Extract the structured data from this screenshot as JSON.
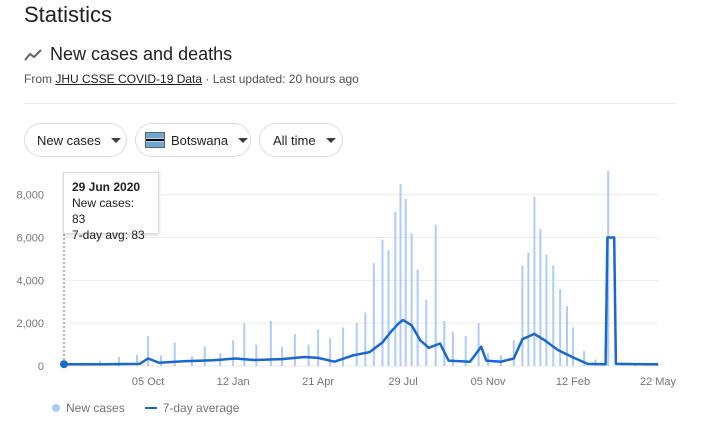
{
  "page_title": "Statistics",
  "section": {
    "title": "New cases and deaths",
    "icon": "trending-line-icon"
  },
  "source": {
    "prefix": "From",
    "link_label": "JHU CSSE COVID-19 Data",
    "updated": "· Last updated: 20 hours ago"
  },
  "filters": {
    "metric": "New cases",
    "country": "Botswana",
    "country_flag": "botswana-flag-icon",
    "range": "All time"
  },
  "tooltip": {
    "date": "29 Jun 2020",
    "new_cases": "New cases: 83",
    "avg": "7-day avg: 83"
  },
  "legend": {
    "bars": "New cases",
    "line": "7-day average"
  },
  "colors": {
    "bars": "#aecbfa",
    "line": "#1967d2",
    "grid": "#ebebeb",
    "text": "#70757a"
  },
  "chart_data": {
    "type": "bar",
    "ylim": [
      0,
      8500
    ],
    "y_ticks": [
      "0",
      "2,000",
      "4,000",
      "6,000",
      "8,000"
    ],
    "y_tick_values": [
      0,
      2000,
      4000,
      6000,
      8000
    ],
    "x_ticks": [
      "05 Oct",
      "12 Jan",
      "21 Apr",
      "29 Jul",
      "05 Nov",
      "12 Feb",
      "22 May"
    ],
    "x_tick_dates": [
      "2020-10-05",
      "2021-01-12",
      "2021-04-21",
      "2021-07-29",
      "2021-11-05",
      "2022-02-12",
      "2022-05-22"
    ],
    "x_range": [
      "2020-06-29",
      "2022-05-22"
    ],
    "grid": true,
    "legend_position": "bottom-left",
    "series": [
      {
        "name": "New cases",
        "type": "bar",
        "points": [
          [
            "2020-06-29",
            83
          ],
          [
            "2020-07-20",
            120
          ],
          [
            "2020-08-10",
            250
          ],
          [
            "2020-09-01",
            420
          ],
          [
            "2020-09-22",
            520
          ],
          [
            "2020-10-05",
            1400
          ],
          [
            "2020-10-20",
            500
          ],
          [
            "2020-11-05",
            1100
          ],
          [
            "2020-11-25",
            450
          ],
          [
            "2020-12-10",
            900
          ],
          [
            "2020-12-28",
            600
          ],
          [
            "2021-01-12",
            1200
          ],
          [
            "2021-01-25",
            2000
          ],
          [
            "2021-02-08",
            1000
          ],
          [
            "2021-02-25",
            2100
          ],
          [
            "2021-03-10",
            900
          ],
          [
            "2021-03-25",
            1500
          ],
          [
            "2021-04-10",
            1000
          ],
          [
            "2021-04-21",
            1700
          ],
          [
            "2021-05-05",
            1300
          ],
          [
            "2021-05-20",
            1800
          ],
          [
            "2021-06-05",
            2000
          ],
          [
            "2021-06-15",
            2500
          ],
          [
            "2021-06-25",
            4800
          ],
          [
            "2021-07-05",
            5900
          ],
          [
            "2021-07-12",
            5400
          ],
          [
            "2021-07-20",
            7200
          ],
          [
            "2021-07-26",
            8500
          ],
          [
            "2021-08-01",
            7800
          ],
          [
            "2021-08-08",
            6200
          ],
          [
            "2021-08-15",
            4500
          ],
          [
            "2021-08-25",
            3100
          ],
          [
            "2021-09-05",
            6600
          ],
          [
            "2021-09-15",
            2100
          ],
          [
            "2021-09-25",
            1600
          ],
          [
            "2021-10-10",
            1400
          ],
          [
            "2021-10-25",
            2000
          ],
          [
            "2021-11-05",
            600
          ],
          [
            "2021-11-20",
            500
          ],
          [
            "2021-12-05",
            1200
          ],
          [
            "2021-12-15",
            4700
          ],
          [
            "2021-12-22",
            5300
          ],
          [
            "2021-12-29",
            7900
          ],
          [
            "2022-01-05",
            6400
          ],
          [
            "2022-01-12",
            5200
          ],
          [
            "2022-01-20",
            4700
          ],
          [
            "2022-01-28",
            3600
          ],
          [
            "2022-02-05",
            2800
          ],
          [
            "2022-02-12",
            1800
          ],
          [
            "2022-02-25",
            700
          ],
          [
            "2022-03-10",
            300
          ],
          [
            "2022-03-25",
            9100
          ],
          [
            "2022-04-10",
            150
          ],
          [
            "2022-04-25",
            120
          ],
          [
            "2022-05-10",
            100
          ],
          [
            "2022-05-22",
            90
          ]
        ]
      },
      {
        "name": "7-day average",
        "type": "line",
        "points": [
          [
            "2020-06-29",
            83
          ],
          [
            "2020-08-15",
            80
          ],
          [
            "2020-09-25",
            100
          ],
          [
            "2020-10-05",
            350
          ],
          [
            "2020-10-18",
            150
          ],
          [
            "2020-11-15",
            220
          ],
          [
            "2020-12-20",
            270
          ],
          [
            "2021-01-15",
            350
          ],
          [
            "2021-02-05",
            280
          ],
          [
            "2021-03-10",
            320
          ],
          [
            "2021-04-05",
            420
          ],
          [
            "2021-04-21",
            380
          ],
          [
            "2021-05-10",
            200
          ],
          [
            "2021-06-01",
            500
          ],
          [
            "2021-06-20",
            650
          ],
          [
            "2021-07-05",
            1100
          ],
          [
            "2021-07-15",
            1600
          ],
          [
            "2021-07-24",
            2000
          ],
          [
            "2021-07-29",
            2150
          ],
          [
            "2021-08-08",
            1900
          ],
          [
            "2021-08-18",
            1200
          ],
          [
            "2021-08-28",
            850
          ],
          [
            "2021-09-10",
            1050
          ],
          [
            "2021-09-20",
            250
          ],
          [
            "2021-10-15",
            200
          ],
          [
            "2021-10-28",
            900
          ],
          [
            "2021-11-03",
            250
          ],
          [
            "2021-11-20",
            200
          ],
          [
            "2021-12-05",
            350
          ],
          [
            "2021-12-15",
            1250
          ],
          [
            "2021-12-29",
            1500
          ],
          [
            "2022-01-10",
            1200
          ],
          [
            "2022-01-25",
            750
          ],
          [
            "2022-02-12",
            400
          ],
          [
            "2022-03-01",
            100
          ],
          [
            "2022-03-22",
            80
          ],
          [
            "2022-03-24",
            6000
          ],
          [
            "2022-04-01",
            6000
          ],
          [
            "2022-04-03",
            100
          ],
          [
            "2022-05-22",
            80
          ]
        ]
      }
    ],
    "highlight_date": "2020-06-29"
  }
}
